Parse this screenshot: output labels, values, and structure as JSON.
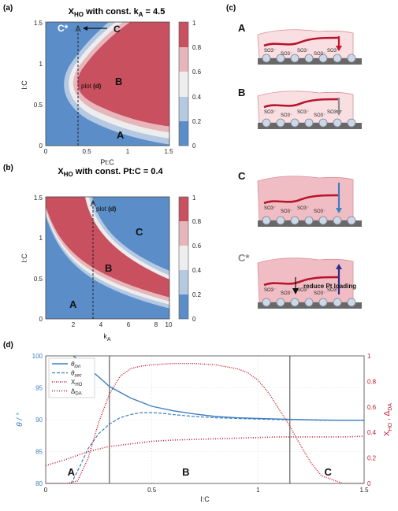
{
  "panels": {
    "a": "(a)",
    "b": "(b)",
    "c": "(c)",
    "d": "(d)"
  },
  "colors": {
    "blue": "#5b8ec9",
    "light_blue": "#b5c9e3",
    "white_band": "#ededed",
    "pink": "#e7b6bb",
    "red": "#c9505f",
    "line_blue": "#3f7fc0",
    "line_red": "#c4162a",
    "substrate": "#686868",
    "particle": "#cdd7e6",
    "membrane": "#f9dfe2",
    "membrane_dark": "#f1bdc4"
  },
  "chart_data": [
    {
      "id": "a",
      "type": "heatmap",
      "title_main": "X",
      "title_sub": "HO",
      "title_rest": " with const. k",
      "title_sub2": "A",
      "title_end": " = 4.5",
      "xlabel": "Pt:C",
      "ylabel": "I:C",
      "xlim": [
        0,
        1.5
      ],
      "ylim": [
        0,
        1.5
      ],
      "xticks": [
        "0",
        "0.5",
        "1",
        "1.5"
      ],
      "yticks": [
        "0",
        "0.5",
        "1",
        "1.5"
      ],
      "colorbar_ticks": [
        "0",
        "0.2",
        "0.4",
        "0.6",
        "0.8",
        "1"
      ],
      "region_labels": [
        "C*",
        "C",
        "B",
        "A"
      ],
      "marker_label": "plot ",
      "marker_ref": "(d)",
      "marker_x": 0.4
    },
    {
      "id": "b",
      "type": "heatmap",
      "title_main": "X",
      "title_sub": "HO",
      "title_rest": " with const. Pt:C = 0.4",
      "xlabel": "k",
      "xlabel_sub": "A",
      "ylabel": "I:C",
      "xlim": [
        1,
        10
      ],
      "ylim": [
        0,
        1.5
      ],
      "xticks": [
        "2",
        "4",
        "6",
        "8",
        "10"
      ],
      "yticks": [
        "0",
        "0.5",
        "1",
        "1.5"
      ],
      "colorbar_ticks": [
        "0",
        "0.2",
        "0.4",
        "0.6",
        "0.8",
        "1"
      ],
      "region_labels": [
        "C",
        "B",
        "A"
      ],
      "marker_label": "plot ",
      "marker_ref": "(d)",
      "marker_x": 4.5
    },
    {
      "id": "d",
      "type": "line",
      "xlabel": "I:C",
      "ylabel_left": "θ / °",
      "ylabel_right": "X",
      "ylabel_right_sub": "HO",
      "ylabel_right_mid": " , Δ",
      "ylabel_right_sub2": "DA",
      "xlim": [
        0,
        1.5
      ],
      "ylim_left": [
        80,
        100
      ],
      "ylim_right": [
        0,
        1
      ],
      "xticks": [
        "0",
        "0.5",
        "1",
        "1.5"
      ],
      "yticks_left": [
        "80",
        "85",
        "90",
        "95",
        "100"
      ],
      "yticks_right": [
        "0",
        "0.2",
        "0.4",
        "0.6",
        "0.8",
        "1"
      ],
      "vlines": [
        0.3,
        1.15
      ],
      "region_labels": [
        "A",
        "B",
        "C"
      ],
      "legend": [
        {
          "name": "θ",
          "sub": "ion"
        },
        {
          "name": "θ",
          "sub": "sec"
        },
        {
          "name": "X",
          "sub": "HO"
        },
        {
          "name": "Δ",
          "sub": "DA"
        }
      ],
      "series": [
        {
          "axis": "left",
          "x": [
            0.13,
            0.18,
            0.25,
            0.3,
            0.4,
            0.5,
            0.6,
            0.7,
            0.8,
            0.9,
            1.0,
            1.1,
            1.2,
            1.3,
            1.4,
            1.5
          ],
          "values": [
            100,
            98.6,
            96.7,
            95.2,
            93.4,
            92.1,
            91.4,
            90.9,
            90.5,
            90.3,
            90.2,
            90.1,
            90.0,
            89.95,
            89.9,
            89.9
          ]
        },
        {
          "axis": "left",
          "x": [
            0.12,
            0.16,
            0.2,
            0.25,
            0.3,
            0.35,
            0.4,
            0.45,
            0.5,
            0.55,
            0.6,
            0.7,
            0.8,
            0.9,
            1.0,
            1.1,
            1.2,
            1.3,
            1.4,
            1.5
          ],
          "values": [
            80,
            82.6,
            85.5,
            87.8,
            89.3,
            90.3,
            90.8,
            91.1,
            91.1,
            91.0,
            90.8,
            90.5,
            90.3,
            90.2,
            90.1,
            90.0,
            90.0,
            89.9,
            89.9,
            89.9
          ]
        },
        {
          "axis": "right",
          "x": [
            0,
            0.1,
            0.15,
            0.2,
            0.25,
            0.3,
            0.35,
            0.4,
            0.45,
            0.5,
            0.6,
            0.7,
            0.8,
            0.9,
            0.95,
            1.0,
            1.05,
            1.1,
            1.15,
            1.2,
            1.25,
            1.3,
            1.4,
            1.5
          ],
          "values": [
            0,
            0,
            0.02,
            0.2,
            0.48,
            0.7,
            0.84,
            0.9,
            0.92,
            0.93,
            0.94,
            0.94,
            0.93,
            0.9,
            0.87,
            0.81,
            0.71,
            0.58,
            0.45,
            0.3,
            0.16,
            0.06,
            0,
            0
          ]
        },
        {
          "axis": "right",
          "x": [
            0,
            0.1,
            0.2,
            0.3,
            0.4,
            0.5,
            0.6,
            0.7,
            0.8,
            0.9,
            1.0,
            1.1,
            1.2,
            1.3,
            1.4,
            1.5
          ],
          "values": [
            0.14,
            0.19,
            0.25,
            0.29,
            0.31,
            0.33,
            0.34,
            0.345,
            0.35,
            0.355,
            0.36,
            0.365,
            0.365,
            0.365,
            0.365,
            0.37
          ]
        }
      ]
    }
  ],
  "schematic": {
    "rows": [
      {
        "label": "A",
        "sulfonates": [
          "SO3⁻",
          "SO3⁻",
          "SO3⁻",
          "SO3⁻",
          "SO3⁻"
        ],
        "arrow": "down",
        "arrow_color": "#c4162a"
      },
      {
        "label": "B",
        "sulfonates": [
          "SO3⁻",
          "SO3⁻",
          "SO3⁻",
          "SO3⁻",
          "SO3⁻"
        ],
        "arrow": "down",
        "arrow_color": "#8e8e8e"
      },
      {
        "label": "C",
        "sulfonates": [
          "SO3⁻",
          "SO3⁻",
          "SO3⁻",
          "SO3⁻"
        ],
        "arrow": "down",
        "arrow_color": "#3f7fc0"
      },
      {
        "label": "C*",
        "sulfonates": [
          "SO3⁻",
          "SO3⁻",
          "SO3⁻",
          "SO3⁻",
          "SO3⁻"
        ],
        "arrow": "up",
        "arrow_color": "#2d2e8c"
      }
    ],
    "transition_label": "reduce Pt loading"
  }
}
